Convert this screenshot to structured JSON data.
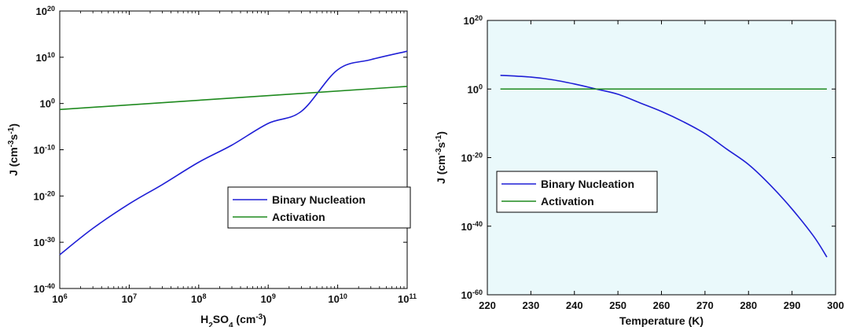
{
  "chart_data": [
    {
      "type": "line",
      "xscale": "log",
      "yscale": "log",
      "xlim": [
        1000000,
        100000000000
      ],
      "ylim": [
        1e-40,
        1e+20
      ],
      "xlabel": {
        "base": "H",
        "sub1": "2",
        "mid": "SO",
        "sub2": "4",
        "tail": " (cm",
        "sup": "-3",
        "end": ")"
      },
      "ylabel": {
        "base": "J (cm",
        "sup1": "-3",
        "mid": "s",
        "sup2": "-1",
        "end": ")"
      },
      "xticks": [
        {
          "base": "10",
          "exp": "6"
        },
        {
          "base": "10",
          "exp": "7"
        },
        {
          "base": "10",
          "exp": "8"
        },
        {
          "base": "10",
          "exp": "9"
        },
        {
          "base": "10",
          "exp": "10"
        },
        {
          "base": "10",
          "exp": "11"
        }
      ],
      "yticks": [
        {
          "base": "10",
          "exp": "-40"
        },
        {
          "base": "10",
          "exp": "-30"
        },
        {
          "base": "10",
          "exp": "-20"
        },
        {
          "base": "10",
          "exp": "-10"
        },
        {
          "base": "10",
          "exp": "0"
        },
        {
          "base": "10",
          "exp": "10"
        },
        {
          "base": "10",
          "exp": "20"
        }
      ],
      "grid": false,
      "legend_position": "center-right",
      "background": "#ffffff",
      "series": [
        {
          "name": "Binary Nucleation",
          "color": "#1f1fd6",
          "x": [
            1000000,
            3000000,
            10000000,
            30000000,
            100000000,
            300000000,
            1000000000,
            3000000000,
            10000000000,
            30000000000,
            100000000000
          ],
          "y": [
            2e-33,
            1e-27,
            2e-22,
            3e-18,
            2e-13,
            1e-09,
            5e-05,
            0.02,
            20000000.0,
            3000000000.0,
            200000000000.0
          ]
        },
        {
          "name": "Activation",
          "color": "#1f8a1f",
          "x": [
            1000000,
            100000000000
          ],
          "y": [
            0.05,
            5000
          ]
        }
      ]
    },
    {
      "type": "line",
      "xscale": "linear",
      "yscale": "log",
      "xlim": [
        220,
        300
      ],
      "ylim": [
        1e-60,
        1e+20
      ],
      "xlabel": {
        "base": "Temperature (K)"
      },
      "ylabel": {
        "base": "J (cm",
        "sup1": "-3",
        "mid": "s",
        "sup2": "-1",
        "end": ")"
      },
      "xticks": [
        {
          "base": "220"
        },
        {
          "base": "230"
        },
        {
          "base": "240"
        },
        {
          "base": "250"
        },
        {
          "base": "260"
        },
        {
          "base": "270"
        },
        {
          "base": "280"
        },
        {
          "base": "290"
        },
        {
          "base": "300"
        }
      ],
      "yticks": [
        {
          "base": "10",
          "exp": "-60"
        },
        {
          "base": "10",
          "exp": "-40"
        },
        {
          "base": "10",
          "exp": "-20"
        },
        {
          "base": "10",
          "exp": "0"
        },
        {
          "base": "10",
          "exp": "20"
        }
      ],
      "grid": false,
      "legend_position": "center-left",
      "background": "#eaf9fb",
      "series": [
        {
          "name": "Binary Nucleation",
          "color": "#1f1fd6",
          "x": [
            223,
            230,
            235,
            240,
            245,
            250,
            255,
            260,
            265,
            270,
            275,
            280,
            285,
            290,
            295,
            298
          ],
          "y": [
            10000.0,
            3000.0,
            500.0,
            30.0,
            1.0,
            0.03,
            0.0001,
            3e-07,
            3e-10,
            1e-13,
            3e-18,
            1e-22,
            1e-28,
            1e-35,
            1e-43,
            1e-49
          ]
        },
        {
          "name": "Activation",
          "color": "#1f8a1f",
          "x": [
            223,
            298
          ],
          "y": [
            1,
            1
          ]
        }
      ]
    }
  ]
}
